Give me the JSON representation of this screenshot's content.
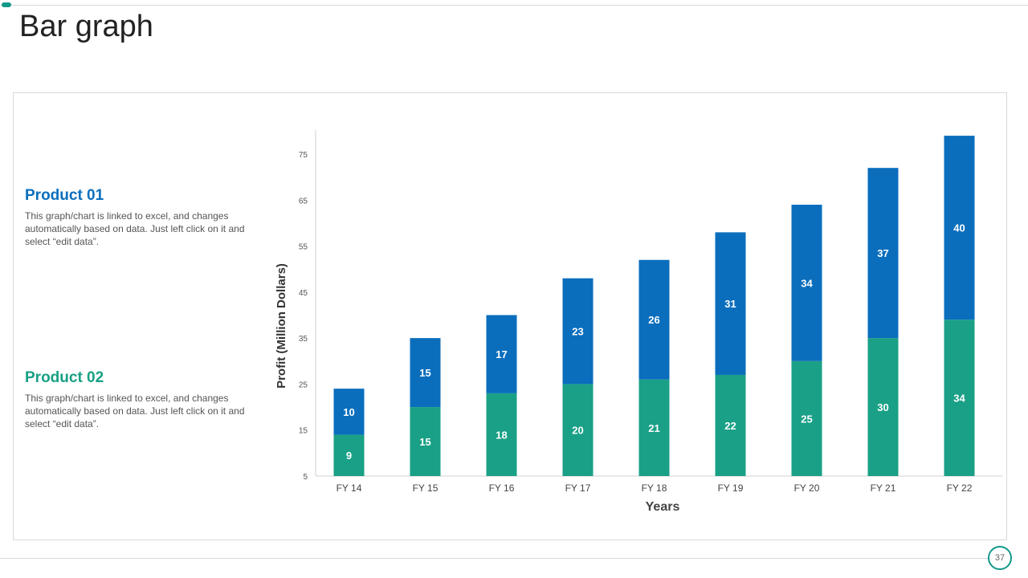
{
  "slide": {
    "title": "Bar graph",
    "page_number": "37"
  },
  "products": [
    {
      "name": "Product 01",
      "description": "This graph/chart is linked to excel, and changes automatically based on data. Just left click on it and select “edit data”.",
      "color": "#0a6ebd"
    },
    {
      "name": "Product 02",
      "description": "This graph/chart is linked to excel, and changes automatically based on data. Just left click on it and select “edit data”.",
      "color": "#17a084"
    }
  ],
  "chart_data": {
    "type": "bar",
    "stacked": true,
    "title": "",
    "xlabel": "Years",
    "ylabel": "Profit  (Million Dollars)",
    "categories": [
      "FY 14",
      "FY 15",
      "FY 16",
      "FY 17",
      "FY 18",
      "FY 19",
      "FY 20",
      "FY 21",
      "FY 22"
    ],
    "series": [
      {
        "name": "Product 02",
        "values": [
          9,
          15,
          18,
          20,
          21,
          22,
          25,
          30,
          34
        ],
        "color": "#1aa086"
      },
      {
        "name": "Product 01",
        "values": [
          10,
          15,
          17,
          23,
          26,
          31,
          34,
          37,
          40
        ],
        "color": "#0a6ebd"
      }
    ],
    "yticks": [
      5,
      15,
      25,
      35,
      45,
      55,
      65,
      75
    ],
    "ylim": [
      5,
      80
    ],
    "grid": false
  }
}
